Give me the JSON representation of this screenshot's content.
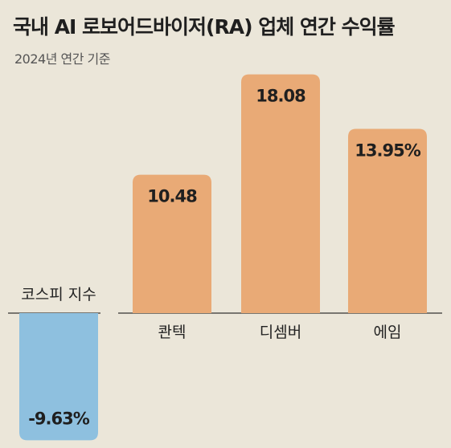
{
  "title": "국내 AI 로보어드바이저(RA) 업체 연간 수익률",
  "subtitle": "2024년 연간 기준",
  "colors": {
    "positive_bar": "#e9aa76",
    "negative_bar": "#8ec0df",
    "background": "#ebe6d9",
    "baseline": "#333333"
  },
  "chart_data": {
    "type": "bar",
    "title": "국내 AI 로보어드바이저(RA) 업체 연간 수익률",
    "subtitle": "2024년 연간 기준",
    "categories": [
      "코스피 지수",
      "콴텍",
      "디셈버",
      "에임"
    ],
    "values": [
      -9.63,
      10.48,
      18.08,
      13.95
    ],
    "data_labels": [
      "-9.63%",
      "10.48",
      "18.08",
      "13.95%"
    ],
    "xlabel": "",
    "ylabel": "",
    "ylim": [
      -9.63,
      18.08
    ],
    "grid": false,
    "legend": "none"
  }
}
